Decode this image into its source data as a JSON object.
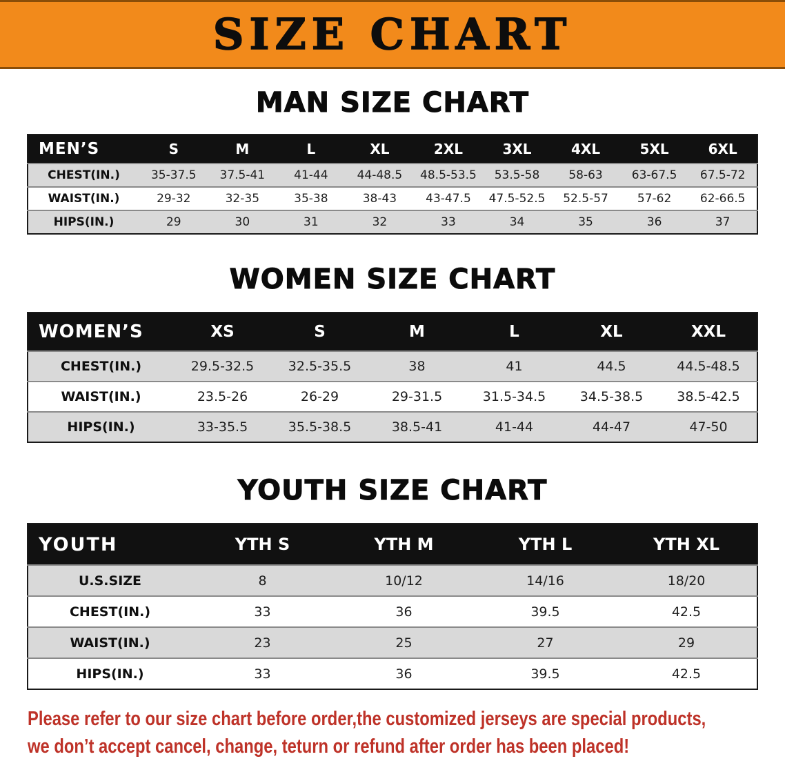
{
  "banner": {
    "title": "SIZE CHART"
  },
  "chart_data": [
    {
      "type": "table",
      "title": "MAN SIZE CHART",
      "columns": [
        "MEN’S",
        "S",
        "M",
        "L",
        "XL",
        "2XL",
        "3XL",
        "4XL",
        "5XL",
        "6XL"
      ],
      "rows": [
        [
          "CHEST(IN.)",
          "35-37.5",
          "37.5-41",
          "41-44",
          "44-48.5",
          "48.5-53.5",
          "53.5-58",
          "58-63",
          "63-67.5",
          "67.5-72"
        ],
        [
          "WAIST(IN.)",
          "29-32",
          "32-35",
          "35-38",
          "38-43",
          "43-47.5",
          "47.5-52.5",
          "52.5-57",
          "57-62",
          "62-66.5"
        ],
        [
          "HIPS(IN.)",
          "29",
          "30",
          "31",
          "32",
          "33",
          "34",
          "35",
          "36",
          "37"
        ]
      ]
    },
    {
      "type": "table",
      "title": "WOMEN SIZE CHART",
      "columns": [
        "WOMEN’S",
        "XS",
        "S",
        "M",
        "L",
        "XL",
        "XXL"
      ],
      "rows": [
        [
          "CHEST(IN.)",
          "29.5-32.5",
          "32.5-35.5",
          "38",
          "41",
          "44.5",
          "44.5-48.5"
        ],
        [
          "WAIST(IN.)",
          "23.5-26",
          "26-29",
          "29-31.5",
          "31.5-34.5",
          "34.5-38.5",
          "38.5-42.5"
        ],
        [
          "HIPS(IN.)",
          "33-35.5",
          "35.5-38.5",
          "38.5-41",
          "41-44",
          "44-47",
          "47-50"
        ]
      ]
    },
    {
      "type": "table",
      "title": "YOUTH SIZE CHART",
      "columns": [
        "YOUTH",
        "YTH S",
        "YTH M",
        "YTH L",
        "YTH XL"
      ],
      "rows": [
        [
          "U.S.SIZE",
          "8",
          "10/12",
          "14/16",
          "18/20"
        ],
        [
          "CHEST(IN.)",
          "33",
          "36",
          "39.5",
          "42.5"
        ],
        [
          "WAIST(IN.)",
          "23",
          "25",
          "27",
          "29"
        ],
        [
          "HIPS(IN.)",
          "33",
          "36",
          "39.5",
          "42.5"
        ]
      ]
    }
  ],
  "disclaimer": {
    "line1": "Please refer to our size chart before order,the customized jerseys are special products,",
    "line2": "we don’t accept cancel, change, teturn or refund after order has been placed!"
  },
  "colors": {
    "banner_bg": "#F28A1B",
    "header_bg": "#111111",
    "row_alt_bg": "#D9D9D9",
    "disclaimer_red": "#BE3228"
  }
}
